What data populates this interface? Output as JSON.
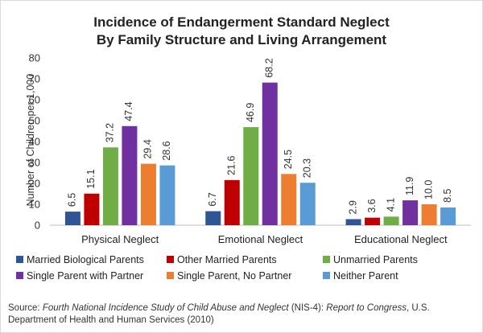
{
  "chart_data": {
    "type": "bar",
    "title_lines": [
      "Incidence of Endangerment Standard Neglect",
      "By Family Structure and Living Arrangement"
    ],
    "ylabel": "Number of Children per 1,000",
    "ylim": [
      0,
      80
    ],
    "yticks": [
      0,
      10,
      20,
      30,
      40,
      50,
      60,
      70,
      80
    ],
    "grid": false,
    "legend_position": "bottom",
    "categories": [
      "Physical Neglect",
      "Emotional Neglect",
      "Educational Neglect"
    ],
    "series": [
      {
        "name": "Married Biological Parents",
        "color": "#2F5597",
        "values": [
          6.5,
          6.7,
          2.9
        ],
        "labels": [
          "6.5",
          "6.7",
          "2.9"
        ]
      },
      {
        "name": "Other Married Parents",
        "color": "#C00000",
        "values": [
          15.1,
          21.6,
          3.6
        ],
        "labels": [
          "15.1",
          "21.6",
          "3.6"
        ]
      },
      {
        "name": "Unmarried Parents",
        "color": "#70AD47",
        "values": [
          37.2,
          46.9,
          4.1
        ],
        "labels": [
          "37.2",
          "46.9",
          "4.1"
        ]
      },
      {
        "name": "Single Parent with Partner",
        "color": "#7030A0",
        "values": [
          47.4,
          68.2,
          11.9
        ],
        "labels": [
          "47.4",
          "68.2",
          "11.9"
        ]
      },
      {
        "name": "Single Parent, No Partner",
        "color": "#ED7D31",
        "values": [
          29.4,
          24.5,
          10.0
        ],
        "labels": [
          "29.4",
          "24.5",
          "10.0"
        ]
      },
      {
        "name": "Neither Parent",
        "color": "#5B9BD5",
        "values": [
          28.6,
          20.3,
          8.5
        ],
        "labels": [
          "28.6",
          "20.3",
          "8.5"
        ]
      }
    ]
  },
  "source": {
    "prefix": "Source: ",
    "study": "Fourth National Incidence Study of Child Abuse and Neglect",
    "abbrev": " (NIS-4): ",
    "report": "Report to Congress",
    "rest": ", U.S. Department of Health and Human Services (2010)"
  }
}
